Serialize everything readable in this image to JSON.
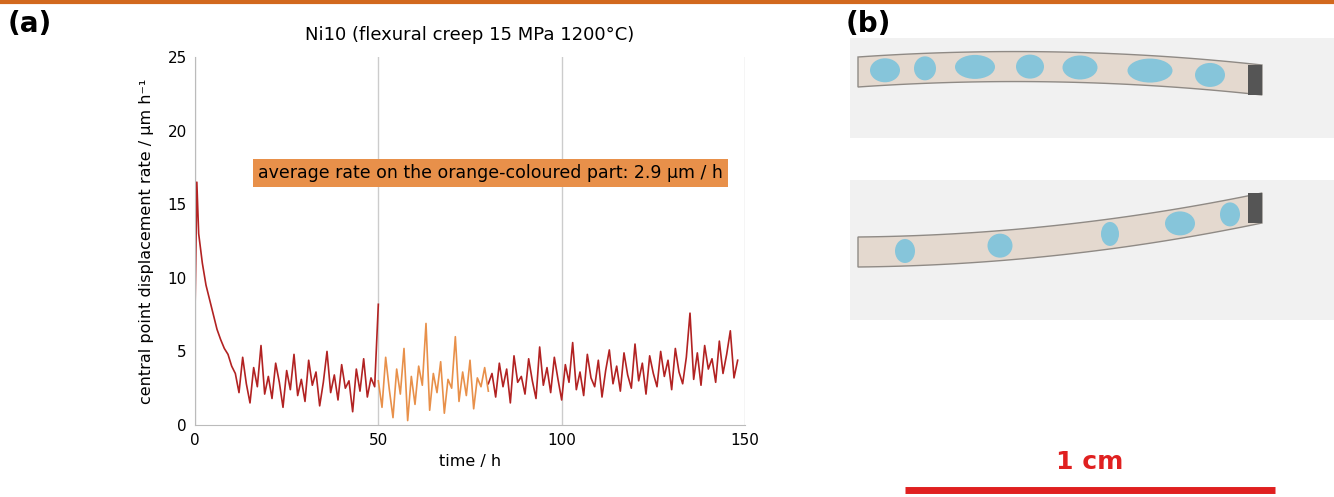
{
  "chart_data": {
    "type": "line",
    "title": "Ni10 (flexural creep 15 MPa 1200°C)",
    "x_label": "time / h",
    "y_label": "central point displacement rate / µm h⁻¹",
    "xlim": [
      0,
      150
    ],
    "xticks": [
      0,
      50,
      100,
      150
    ],
    "ylim": [
      0,
      25
    ],
    "yticks": [
      0,
      5,
      10,
      15,
      20,
      25
    ],
    "grid": "x",
    "annotations": [
      {
        "text": "average rate on the orange-coloured part: 2.9 µm / h"
      }
    ],
    "series": [
      {
        "color": "#B22222",
        "x": [
          0,
          0.5,
          1,
          2,
          3,
          4,
          5,
          6,
          7,
          8,
          9,
          10,
          11,
          12,
          13,
          14,
          15,
          16,
          17,
          18,
          19,
          20,
          21,
          22,
          23,
          24,
          25,
          26,
          27,
          28,
          29,
          30,
          31,
          32,
          33,
          34,
          35,
          36,
          37,
          38,
          39,
          40,
          41,
          42,
          43,
          44,
          45,
          46,
          47,
          48,
          49,
          50,
          65,
          80,
          81,
          82,
          83,
          84,
          85,
          86,
          87,
          88,
          89,
          90,
          91,
          92,
          93,
          94,
          95,
          96,
          97,
          98,
          99,
          100,
          101,
          102,
          103,
          104,
          105,
          106,
          107,
          108,
          109,
          110,
          111,
          112,
          113,
          114,
          115,
          116,
          117,
          118,
          119,
          120,
          121,
          122,
          123,
          124,
          125,
          126,
          127,
          128,
          129,
          130,
          131,
          132,
          133,
          134,
          135,
          136,
          137,
          138,
          139,
          140,
          141,
          142,
          143,
          144,
          145,
          146,
          147,
          148
        ],
        "values": [
          7.6,
          16.5,
          13.0,
          11.0,
          9.5,
          8.5,
          7.5,
          6.5,
          5.8,
          5.2,
          4.8,
          4.0,
          3.5,
          2.2,
          4.6,
          2.8,
          1.5,
          3.9,
          2.6,
          5.4,
          2.1,
          3.3,
          1.8,
          4.2,
          2.9,
          1.2,
          3.7,
          2.4,
          4.8,
          2.0,
          3.1,
          1.6,
          4.4,
          2.7,
          3.6,
          1.3,
          2.9,
          5.0,
          2.2,
          3.4,
          1.7,
          4.1,
          2.5,
          3.0,
          0.9,
          3.8,
          2.3,
          4.5,
          1.9,
          3.2,
          2.6,
          8.2,
          null,
          2.8,
          3.5,
          1.9,
          4.2,
          2.6,
          3.8,
          1.5,
          4.7,
          2.9,
          3.3,
          2.1,
          4.5,
          3.0,
          1.8,
          5.3,
          2.7,
          3.9,
          2.2,
          4.6,
          3.1,
          1.7,
          4.1,
          2.9,
          5.6,
          2.4,
          3.6,
          2.0,
          4.8,
          3.2,
          2.6,
          4.4,
          1.9,
          3.7,
          5.1,
          2.8,
          4.0,
          2.3,
          4.9,
          3.4,
          2.5,
          5.5,
          3.0,
          4.2,
          2.1,
          4.7,
          3.5,
          2.6,
          5.0,
          3.3,
          4.4,
          2.4,
          5.2,
          3.6,
          2.8,
          4.6,
          7.6,
          3.1,
          4.9,
          2.7,
          5.4,
          3.8,
          4.5,
          2.9,
          5.7,
          3.5,
          4.8,
          6.4,
          3.2,
          4.4
        ]
      },
      {
        "color": "#E8904A",
        "x": [
          50,
          51,
          52,
          53,
          54,
          55,
          56,
          57,
          58,
          59,
          60,
          61,
          62,
          63,
          64,
          65,
          66,
          67,
          68,
          69,
          70,
          71,
          72,
          73,
          74,
          75,
          76,
          77,
          78,
          79,
          80
        ],
        "values": [
          3.0,
          1.2,
          4.6,
          2.4,
          0.5,
          3.8,
          2.1,
          5.2,
          0.3,
          3.3,
          1.4,
          4.0,
          2.7,
          6.9,
          1.0,
          3.5,
          2.2,
          4.3,
          0.8,
          3.1,
          2.5,
          6.0,
          1.6,
          3.6,
          2.0,
          4.4,
          1.1,
          3.2,
          2.6,
          3.9,
          2.3
        ]
      }
    ]
  },
  "panel_labels": [
    "(a)",
    "(b)"
  ],
  "scale_bar": {
    "label": "1 cm"
  }
}
